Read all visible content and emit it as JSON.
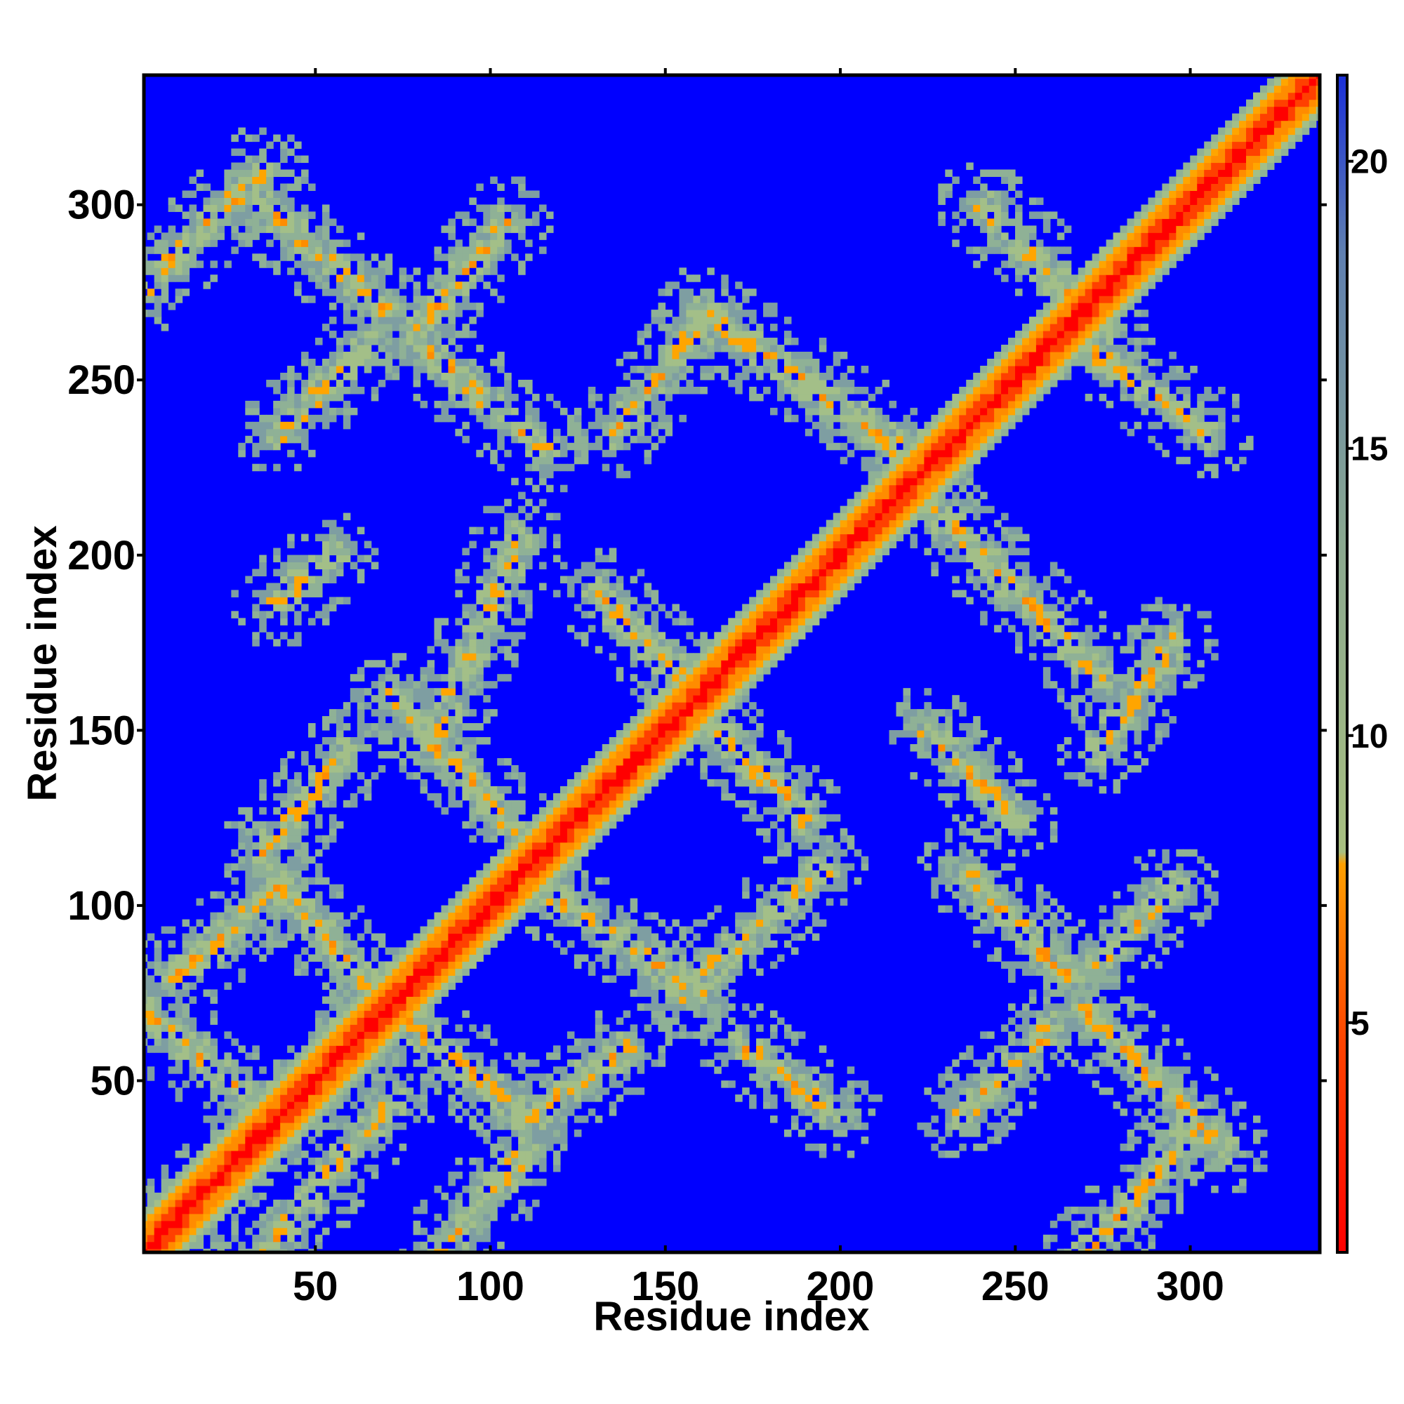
{
  "chart_data": {
    "type": "heatmap",
    "title": "",
    "xlabel": "Residue index",
    "ylabel": "Residue index",
    "xlim": [
      1,
      337
    ],
    "ylim": [
      1,
      337
    ],
    "x_ticks": [
      50,
      100,
      150,
      200,
      250,
      300
    ],
    "y_ticks": [
      50,
      100,
      150,
      200,
      250,
      300
    ],
    "n_residues": 337,
    "colorbar": {
      "range": [
        1,
        21.5
      ],
      "ticks": [
        5,
        10,
        15,
        20
      ],
      "colors": [
        "#ff0000",
        "#ff5500",
        "#ffa000",
        "#9fc08a",
        "#7fa8a0",
        "#5f88b0",
        "#0000ff"
      ]
    },
    "background_value": 21,
    "diagonal_band": {
      "description_width": 6
    },
    "contact_bands": [
      {
        "x": [
          1,
          70
        ],
        "y": [
          1,
          70
        ]
      },
      {
        "x": [
          35,
          72
        ],
        "y": [
          0,
          45
        ]
      },
      {
        "x": [
          0,
          35
        ],
        "y": [
          70,
          42
        ]
      },
      {
        "x": [
          70,
          110
        ],
        "y": [
          72,
          40
        ]
      },
      {
        "x": [
          38,
          70
        ],
        "y": [
          108,
          72
        ]
      },
      {
        "x": [
          10,
          40
        ],
        "y": [
          80,
          105
        ]
      },
      {
        "x": [
          35,
          60
        ],
        "y": [
          115,
          145
        ]
      },
      {
        "x": [
          72,
          115
        ],
        "y": [
          160,
          112
        ]
      },
      {
        "x": [
          85,
          108
        ],
        "y": [
          150,
          205
        ]
      },
      {
        "x": [
          115,
          160
        ],
        "y": [
          105,
          75
        ]
      },
      {
        "x": [
          155,
          195
        ],
        "y": [
          75,
          110
        ]
      },
      {
        "x": [
          112,
          140
        ],
        "y": [
          40,
          60
        ]
      },
      {
        "x": [
          130,
          160
        ],
        "y": [
          190,
          160
        ]
      },
      {
        "x": [
          160,
          190
        ],
        "y": [
          155,
          125
        ]
      },
      {
        "x": [
          160,
          225
        ],
        "y": [
          270,
          225
        ]
      },
      {
        "x": [
          225,
          275
        ],
        "y": [
          215,
          165
        ]
      },
      {
        "x": [
          240,
          275
        ],
        "y": [
          300,
          265
        ]
      },
      {
        "x": [
          270,
          305
        ],
        "y": [
          260,
          235
        ]
      },
      {
        "x": [
          0,
          35
        ],
        "y": [
          275,
          310
        ]
      },
      {
        "x": [
          35,
          70
        ],
        "y": [
          300,
          270
        ]
      },
      {
        "x": [
          40,
          65
        ],
        "y": [
          235,
          260
        ]
      },
      {
        "x": [
          80,
          105
        ],
        "y": [
          265,
          295
        ]
      },
      {
        "x": [
          80,
          115
        ],
        "y": [
          260,
          230
        ]
      },
      {
        "x": [
          235,
          265
        ],
        "y": [
          110,
          80
        ]
      },
      {
        "x": [
          270,
          295
        ],
        "y": [
          80,
          105
        ]
      },
      {
        "x": [
          270,
          310
        ],
        "y": [
          70,
          30
        ]
      },
      {
        "x": [
          270,
          300
        ],
        "y": [
          0,
          35
        ]
      },
      {
        "x": [
          235,
          260
        ],
        "y": [
          40,
          65
        ]
      },
      {
        "x": [
          85,
          110
        ],
        "y": [
          0,
          30
        ]
      },
      {
        "x": [
          172,
          200
        ],
        "y": [
          60,
          40
        ]
      },
      {
        "x": [
          275,
          295
        ],
        "y": [
          145,
          175
        ]
      },
      {
        "x": [
          225,
          250
        ],
        "y": [
          150,
          125
        ]
      },
      {
        "x": [
          38,
          55
        ],
        "y": [
          185,
          200
        ]
      },
      {
        "x": [
          135,
          160
        ],
        "y": [
          235,
          265
        ]
      }
    ]
  }
}
